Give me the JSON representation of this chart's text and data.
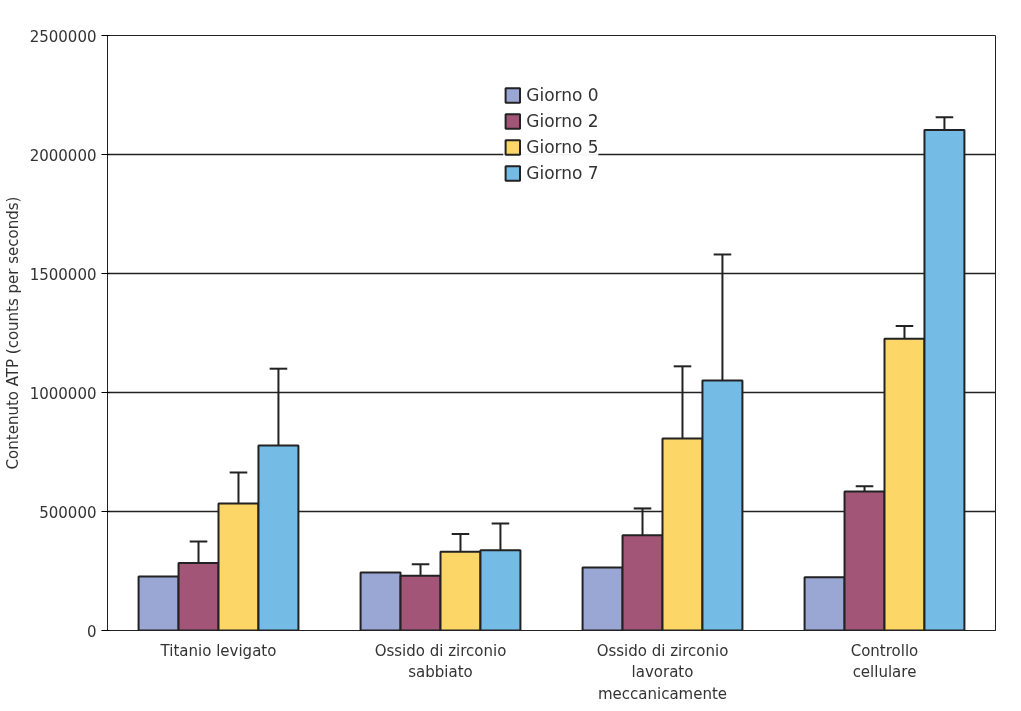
{
  "chart_data": {
    "type": "bar",
    "ylabel": "Contenuto ATP (counts per seconds)",
    "categories": [
      "Titanio levigato",
      "Ossido di zirconio sabbiato",
      "Ossido di zirconio lavorato meccanicamente",
      "Controllo cellulare"
    ],
    "series": [
      {
        "name": "Giorno 0",
        "color": "#9aa6d4",
        "values": [
          227000,
          244000,
          265000,
          224000
        ]
      },
      {
        "name": "Giorno 2",
        "color": "#a35577",
        "values": [
          284000,
          230000,
          400000,
          584000
        ],
        "errors": [
          [
            284000,
            374000
          ],
          [
            230000,
            278000
          ],
          [
            400000,
            513000
          ],
          [
            584000,
            606000
          ]
        ]
      },
      {
        "name": "Giorno 5",
        "color": "#fdd668",
        "values": [
          534000,
          331000,
          807000,
          1226000
        ],
        "errors": [
          [
            534000,
            664000
          ],
          [
            331000,
            405000
          ],
          [
            807000,
            1110000
          ],
          [
            1226000,
            1279000
          ]
        ]
      },
      {
        "name": "Giorno 7",
        "color": "#74bce6",
        "values": [
          777000,
          337000,
          1050000,
          2103000
        ],
        "errors": [
          [
            777000,
            1100000
          ],
          [
            337000,
            450000
          ],
          [
            1050000,
            1580000
          ],
          [
            2103000,
            2157000
          ]
        ]
      }
    ],
    "ylim": [
      0,
      2500000
    ],
    "yticks": [
      0,
      500000,
      1000000,
      1500000,
      2000000,
      2500000
    ],
    "grid": "y",
    "legend": "top"
  }
}
